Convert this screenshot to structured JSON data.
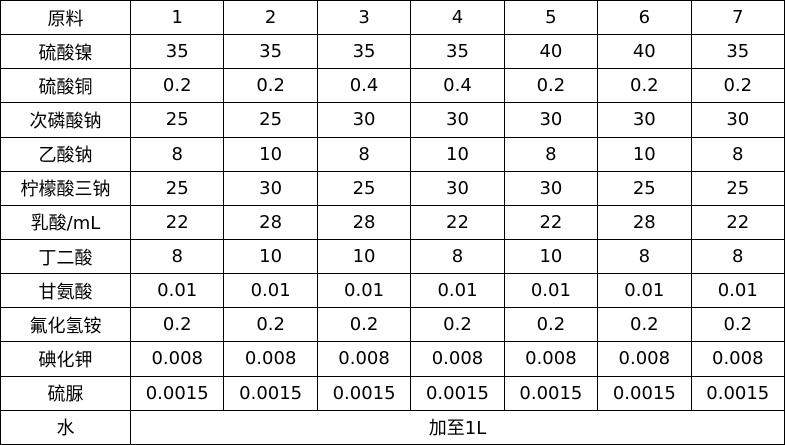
{
  "table": {
    "header": [
      "原料",
      "1",
      "2",
      "3",
      "4",
      "5",
      "6",
      "7"
    ],
    "rows": [
      [
        "硫酸镍",
        "35",
        "35",
        "35",
        "35",
        "40",
        "40",
        "35"
      ],
      [
        "硫酸铜",
        "0.2",
        "0.2",
        "0.4",
        "0.4",
        "0.2",
        "0.2",
        "0.2"
      ],
      [
        "次磷酸钠",
        "25",
        "25",
        "30",
        "30",
        "30",
        "30",
        "30"
      ],
      [
        "乙酸钠",
        "8",
        "10",
        "8",
        "10",
        "8",
        "10",
        "8"
      ],
      [
        "柠檬酸三钠",
        "25",
        "30",
        "25",
        "30",
        "30",
        "25",
        "25"
      ],
      [
        "乳酸/mL",
        "22",
        "28",
        "28",
        "22",
        "22",
        "28",
        "22"
      ],
      [
        "丁二酸",
        "8",
        "10",
        "10",
        "8",
        "10",
        "8",
        "8"
      ],
      [
        "甘氨酸",
        "0.01",
        "0.01",
        "0.01",
        "0.01",
        "0.01",
        "0.01",
        "0.01"
      ],
      [
        "氟化氢铵",
        "0.2",
        "0.2",
        "0.2",
        "0.2",
        "0.2",
        "0.2",
        "0.2"
      ],
      [
        "碘化钾",
        "0.008",
        "0.008",
        "0.008",
        "0.008",
        "0.008",
        "0.008",
        "0.008"
      ],
      [
        "硫脲",
        "0.0015",
        "0.0015",
        "0.0015",
        "0.0015",
        "0.0015",
        "0.0015",
        "0.0015"
      ]
    ],
    "footer": [
      "水",
      "加至1L"
    ]
  }
}
